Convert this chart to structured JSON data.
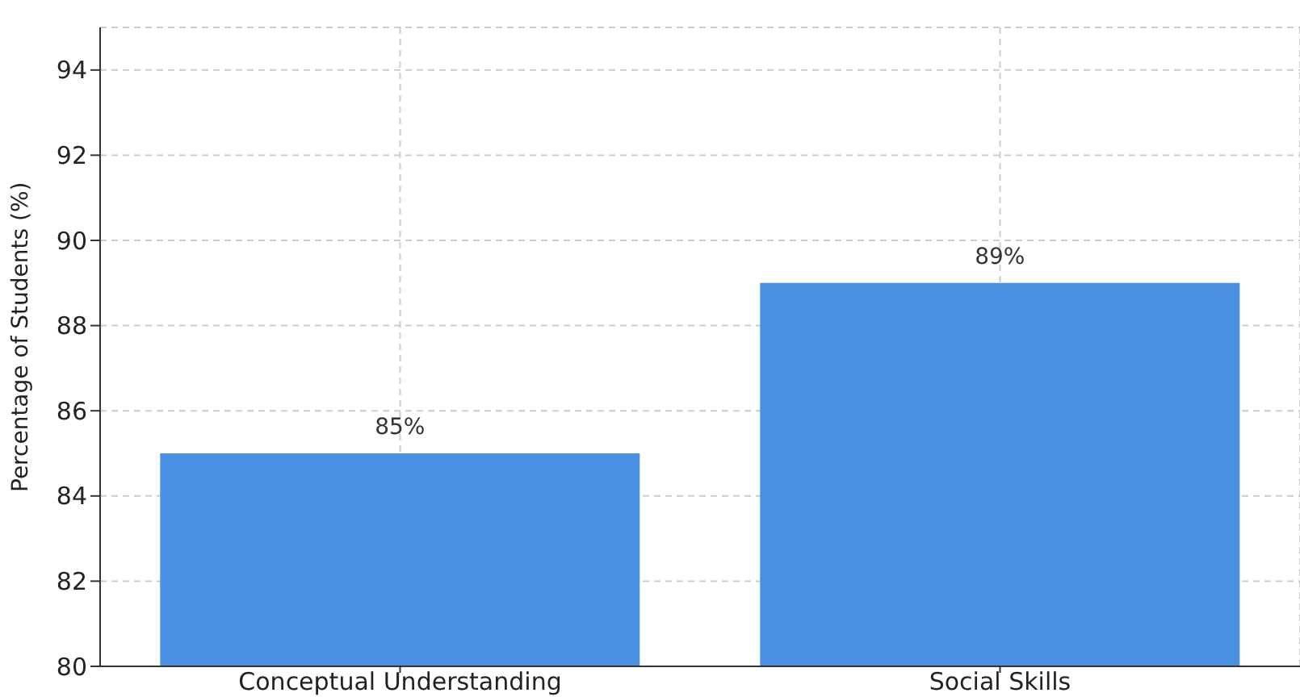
{
  "chart_data": {
    "type": "bar",
    "ylabel": "Percentage of Students (%)",
    "categories": [
      "Conceptual Understanding",
      "Social Skills"
    ],
    "values": [
      85,
      89
    ],
    "color": "#4a90e2",
    "value_labels": [
      "85%",
      "89%"
    ],
    "ylim": [
      80,
      95
    ],
    "yticks": [
      80,
      82,
      84,
      86,
      88,
      90,
      92,
      94
    ],
    "grid": true
  }
}
